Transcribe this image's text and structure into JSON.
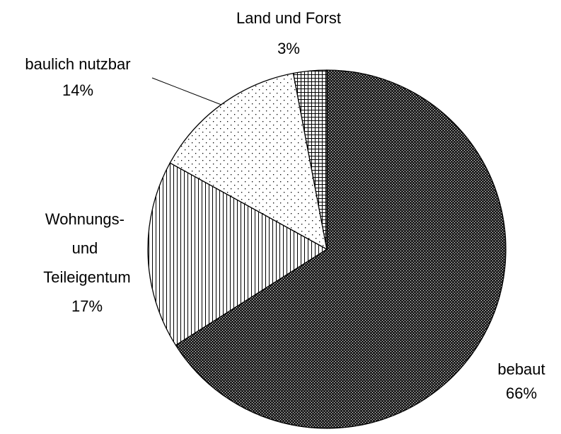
{
  "chart_data": {
    "type": "pie",
    "categories": [
      "bebaut",
      "Wohnungs- und Teileigentum",
      "baulich nutzbar",
      "Land und Forst"
    ],
    "values": [
      66,
      17,
      14,
      3
    ],
    "value_labels": [
      "66%",
      "17%",
      "14%",
      "3%"
    ]
  }
}
